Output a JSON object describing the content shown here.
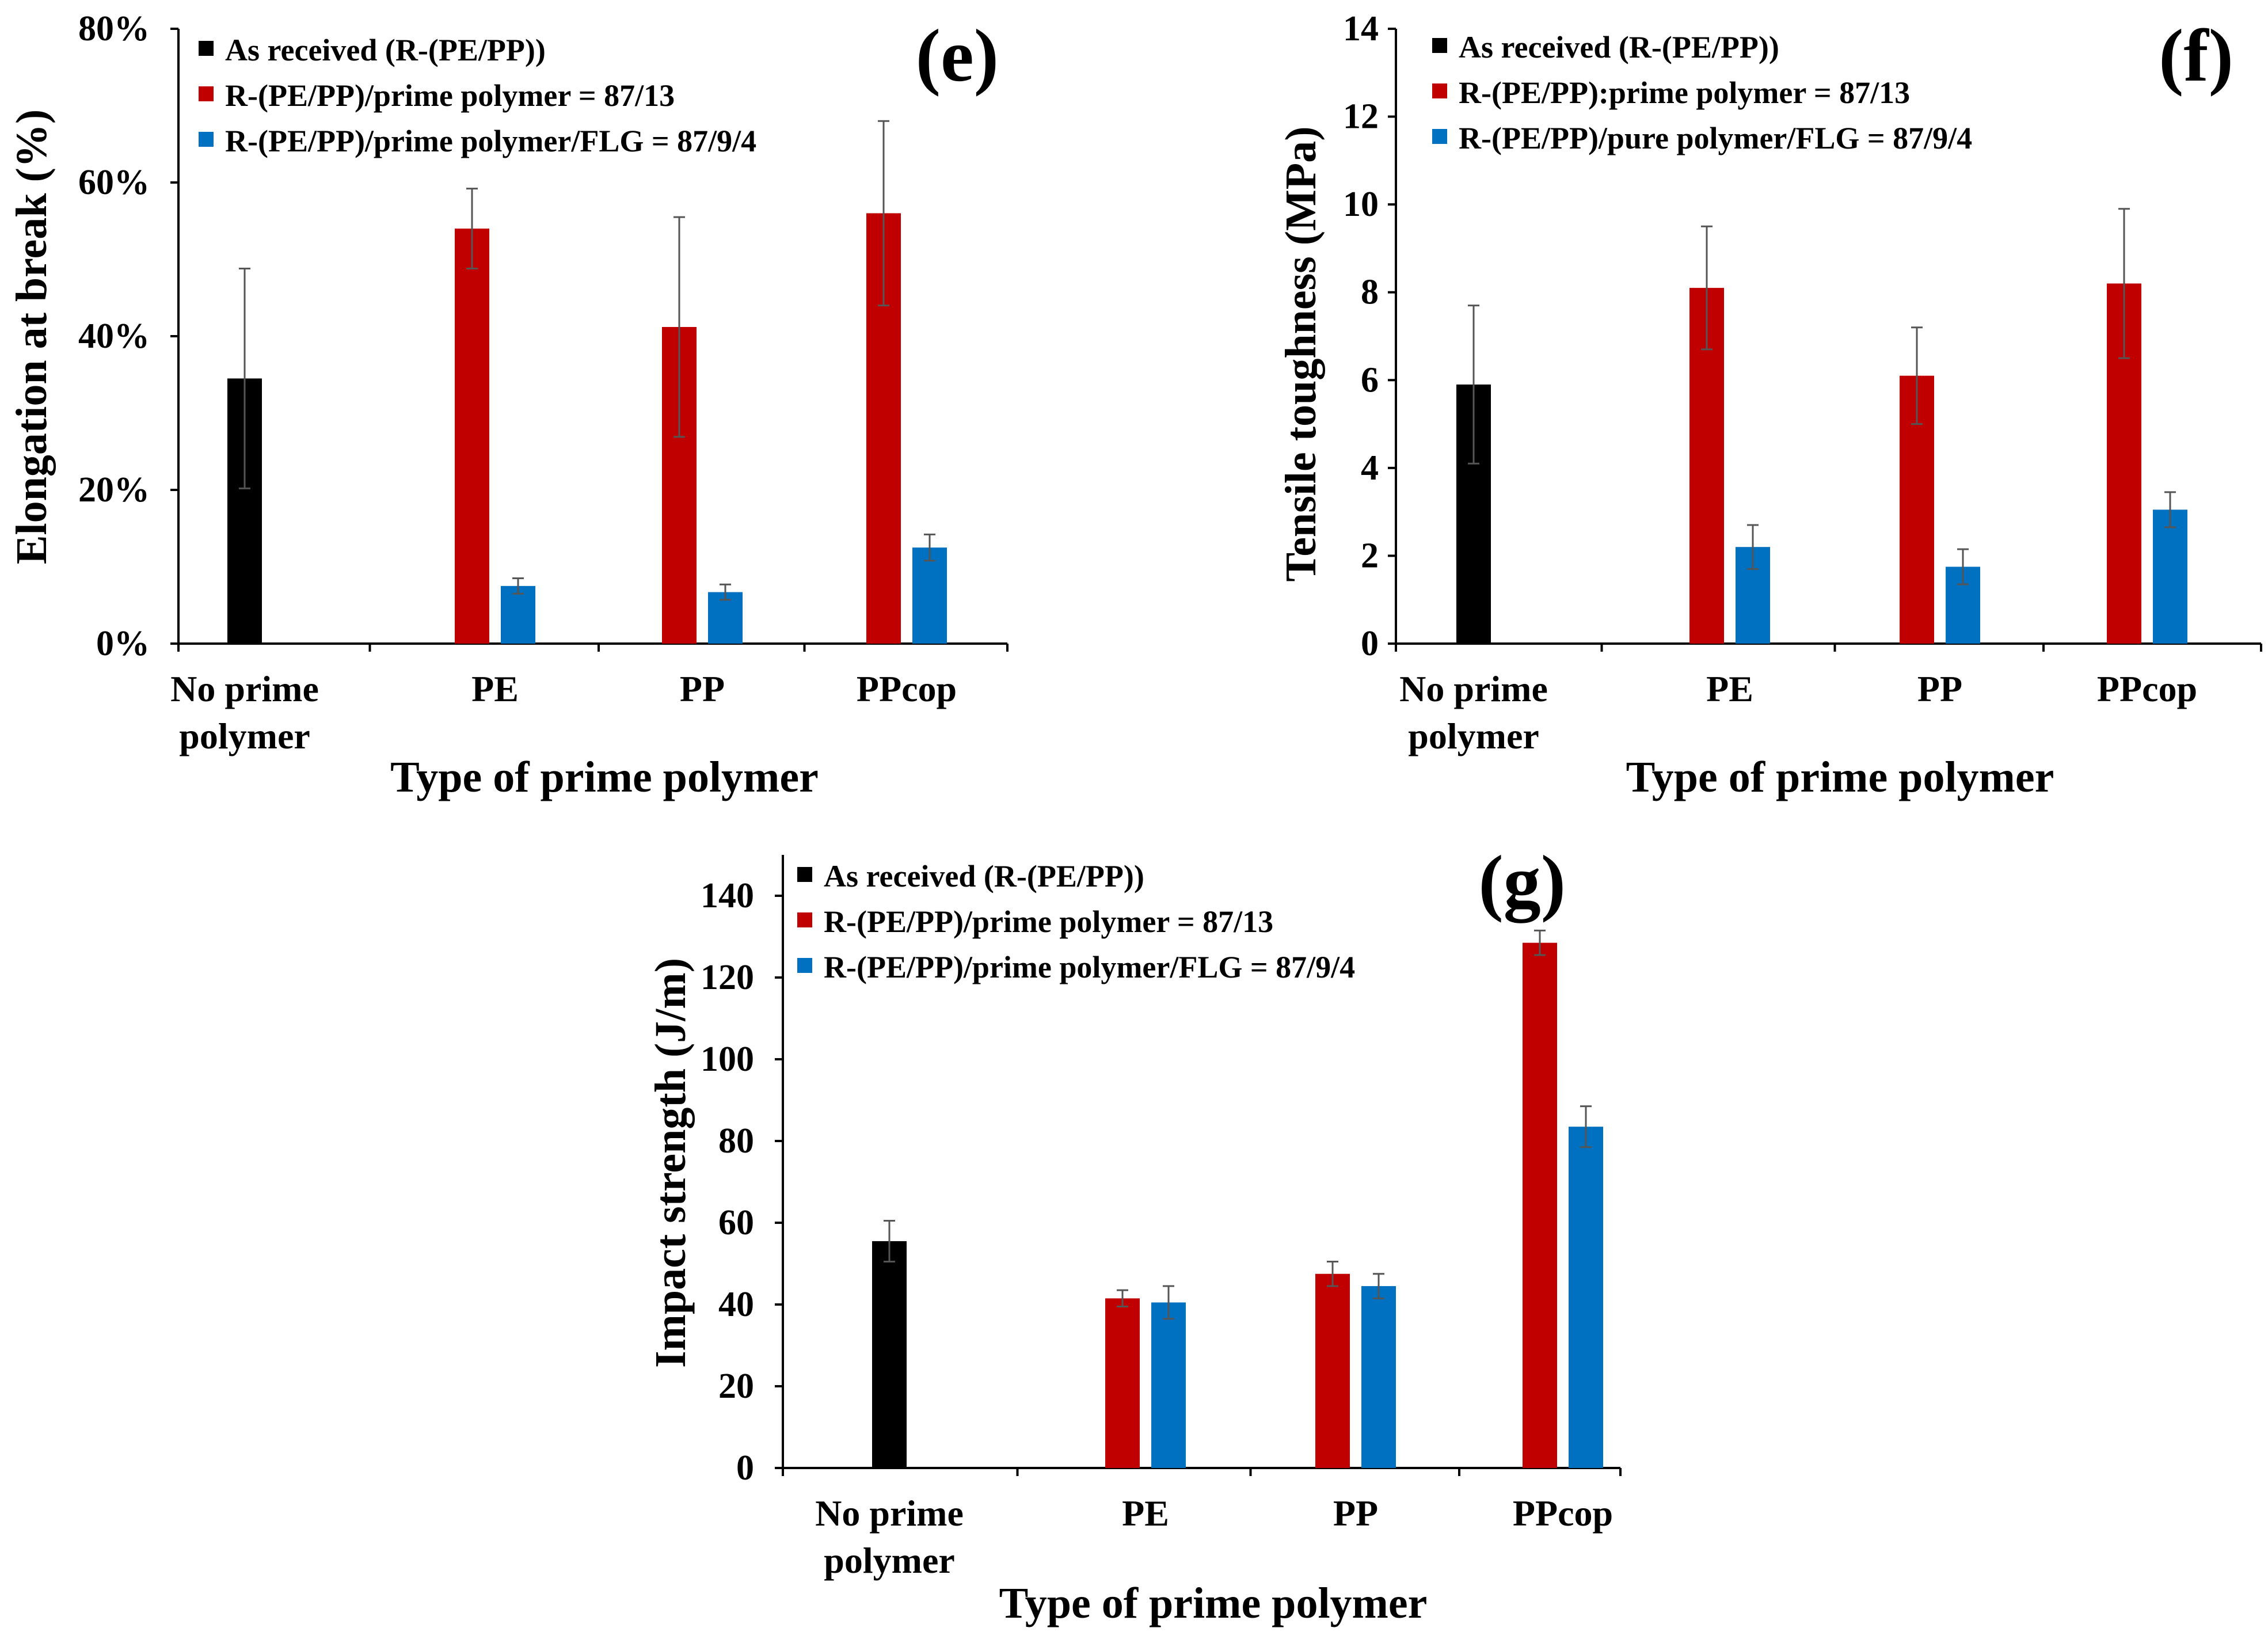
{
  "chart_data": [
    {
      "type": "bar",
      "panel": "(e)",
      "xlabel": "Type of prime polymer",
      "ylabel": "Elongation at break (%)",
      "ylim": [
        0,
        80
      ],
      "yticks": [
        0,
        20,
        40,
        60,
        80
      ],
      "yticklabels": [
        "0%",
        "20%",
        "40%",
        "60%",
        "80%"
      ],
      "categories": [
        "No prime polymer",
        "PE",
        "PP",
        "PPcop"
      ],
      "category_lines": [
        [
          "No prime",
          "polymer"
        ],
        [
          "PE"
        ],
        [
          "PP"
        ],
        [
          "PPcop"
        ]
      ],
      "legend_position": "top-left",
      "series": [
        {
          "name": "As received (R-(PE/PP))",
          "color": "#000000",
          "values": [
            34.5,
            null,
            null,
            null
          ],
          "errors": [
            14.3,
            null,
            null,
            null
          ]
        },
        {
          "name": "R-(PE/PP)/prime polymer = 87/13",
          "color": "#c00000",
          "values": [
            null,
            54,
            41.2,
            56
          ],
          "errors": [
            null,
            5.2,
            14.3,
            12
          ]
        },
        {
          "name": "R-(PE/PP)/prime polymer/FLG = 87/9/4",
          "color": "#0070c0",
          "values": [
            null,
            7.5,
            6.7,
            12.5
          ],
          "errors": [
            null,
            1,
            1,
            1.7
          ]
        }
      ]
    },
    {
      "type": "bar",
      "panel": "(f)",
      "xlabel": "Type of prime polymer",
      "ylabel": "Tensile toughness (MPa)",
      "ylim": [
        0,
        14
      ],
      "yticks": [
        0,
        2,
        4,
        6,
        8,
        10,
        12,
        14
      ],
      "yticklabels": [
        "0",
        "2",
        "4",
        "6",
        "8",
        "10",
        "12",
        "14"
      ],
      "categories": [
        "No prime polymer",
        "PE",
        "PP",
        "PPcop"
      ],
      "category_lines": [
        [
          "No prime",
          "polymer"
        ],
        [
          "PE"
        ],
        [
          "PP"
        ],
        [
          "PPcop"
        ]
      ],
      "legend_position": "top-left",
      "series": [
        {
          "name": "As received (R-(PE/PP))",
          "color": "#000000",
          "values": [
            5.9,
            null,
            null,
            null
          ],
          "errors": [
            1.8,
            null,
            null,
            null
          ]
        },
        {
          "name": "R-(PE/PP):prime polymer = 87/13",
          "color": "#c00000",
          "values": [
            null,
            8.1,
            6.1,
            8.2
          ],
          "errors": [
            null,
            1.4,
            1.1,
            1.7
          ]
        },
        {
          "name": "R-(PE/PP)/pure polymer/FLG = 87/9/4",
          "color": "#0070c0",
          "values": [
            null,
            2.2,
            1.75,
            3.05
          ],
          "errors": [
            null,
            0.5,
            0.4,
            0.4
          ]
        }
      ]
    },
    {
      "type": "bar",
      "panel": "(g)",
      "xlabel": "Type of prime polymer",
      "ylabel": "Impact strength (J/m)",
      "ylim": [
        0,
        150
      ],
      "yticks": [
        0,
        20,
        40,
        60,
        80,
        100,
        120,
        140
      ],
      "yticklabels": [
        "0",
        "20",
        "40",
        "60",
        "80",
        "100",
        "120",
        "140"
      ],
      "categories": [
        "No prime polymer",
        "PE",
        "PP",
        "PPcop"
      ],
      "category_lines": [
        [
          "No prime",
          "polymer"
        ],
        [
          "PE"
        ],
        [
          "PP"
        ],
        [
          "PPcop"
        ]
      ],
      "legend_position": "top-left",
      "series": [
        {
          "name": "As received (R-(PE/PP))",
          "color": "#000000",
          "values": [
            55.5,
            null,
            null,
            null
          ],
          "errors": [
            5,
            null,
            null,
            null
          ]
        },
        {
          "name": "R-(PE/PP)/prime polymer = 87/13",
          "color": "#c00000",
          "values": [
            null,
            41.5,
            47.5,
            128.5
          ],
          "errors": [
            null,
            2,
            3,
            3
          ]
        },
        {
          "name": "R-(PE/PP)/prime polymer/FLG = 87/9/4",
          "color": "#0070c0",
          "values": [
            null,
            40.5,
            44.5,
            83.5
          ],
          "errors": [
            null,
            4,
            3,
            5
          ]
        }
      ]
    }
  ]
}
